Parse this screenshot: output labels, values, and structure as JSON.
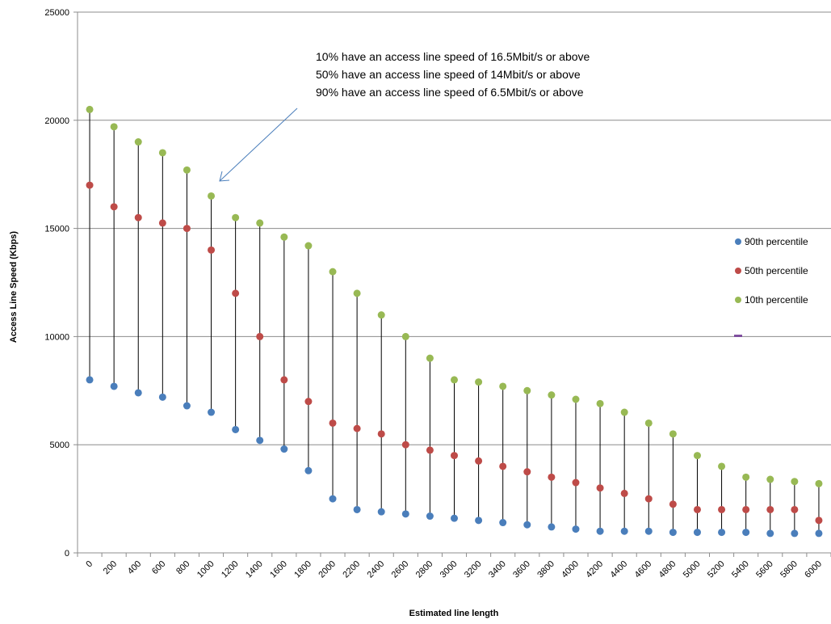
{
  "chart_data": {
    "type": "scatter",
    "title": "",
    "xlabel": "Estimated line length",
    "ylabel": "Access Line Speed (Kbps)",
    "ylim": [
      0,
      25000
    ],
    "yticks": [
      0,
      5000,
      10000,
      15000,
      20000,
      25000
    ],
    "grid": "horizontal",
    "legend_position": "right",
    "categories": [
      "0",
      "200",
      "400",
      "600",
      "800",
      "1000",
      "1200",
      "1400",
      "1600",
      "1800",
      "2000",
      "2200",
      "2400",
      "2600",
      "2800",
      "3000",
      "3200",
      "3400",
      "3600",
      "3800",
      "4000",
      "4200",
      "4400",
      "4600",
      "4800",
      "5000",
      "5200",
      "5400",
      "5600",
      "5800",
      "6000"
    ],
    "series": [
      {
        "name": "90th percentile",
        "color": "#4a7ebb",
        "values": [
          8000,
          7700,
          7400,
          7200,
          6800,
          6500,
          5700,
          5200,
          4800,
          3800,
          2500,
          2000,
          1900,
          1800,
          1700,
          1600,
          1500,
          1400,
          1300,
          1200,
          1100,
          1000,
          1000,
          1000,
          950,
          950,
          950,
          950,
          900,
          900,
          900
        ]
      },
      {
        "name": "50th percentile",
        "color": "#be4b48",
        "values": [
          17000,
          16000,
          15500,
          15250,
          15000,
          14000,
          12000,
          10000,
          8000,
          7000,
          6000,
          5750,
          5500,
          5000,
          4750,
          4500,
          4250,
          4000,
          3750,
          3500,
          3250,
          3000,
          2750,
          2500,
          2250,
          2000,
          2000,
          2000,
          2000,
          2000,
          1500
        ]
      },
      {
        "name": "10th percentile",
        "color": "#98b954",
        "values": [
          20500,
          19700,
          19000,
          18500,
          17700,
          16500,
          15500,
          15250,
          14600,
          14200,
          13000,
          12000,
          11000,
          10000,
          9000,
          8000,
          7900,
          7700,
          7500,
          7300,
          7100,
          6900,
          6500,
          6000,
          5500,
          4500,
          4000,
          3500,
          3400,
          3300,
          3200
        ]
      }
    ],
    "annotation": {
      "lines": [
        "10% have an access line speed of 16.5Mbit/s or above",
        "50% have an access line speed of  14Mbit/s or above",
        "90% have an access line speed of 6.5Mbit/s or above"
      ],
      "points_to_category": "1000",
      "arrow_color": "#4a7ebb"
    },
    "stray_marker_color": "#7f4f9f"
  }
}
